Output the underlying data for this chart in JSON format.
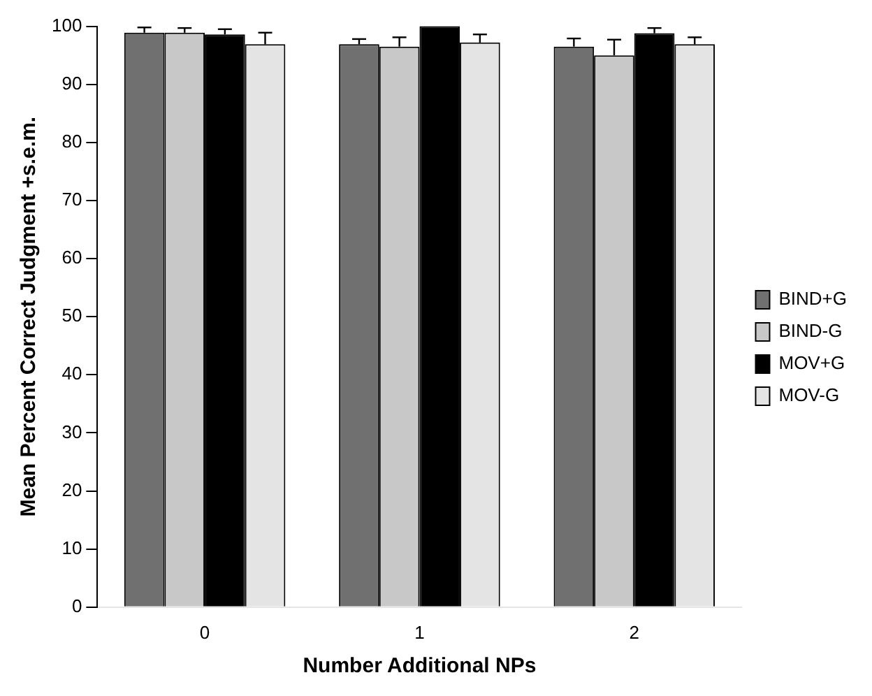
{
  "chart_data": {
    "type": "bar",
    "xlabel": "Number Additional NPs",
    "ylabel": "Mean Percent Correct Judgment +s.e.m.",
    "categories": [
      "0",
      "1",
      "2"
    ],
    "series": [
      {
        "name": "BIND+G",
        "color": "#707070",
        "values": [
          98.9,
          96.9,
          96.5
        ],
        "errors": [
          [
            98.9,
            99.8
          ],
          [
            96.9,
            97.8
          ],
          [
            96.5,
            97.9
          ]
        ]
      },
      {
        "name": "BIND-G",
        "color": "#c8c8c8",
        "values": [
          98.9,
          96.5,
          95.0
        ],
        "errors": [
          [
            98.9,
            99.7
          ],
          [
            96.5,
            98.1
          ],
          [
            95.0,
            97.7
          ]
        ]
      },
      {
        "name": "MOV+G",
        "color": "#000000",
        "values": [
          98.6,
          100,
          98.8
        ],
        "errors": [
          [
            98.6,
            99.5
          ],
          null,
          [
            98.8,
            99.7
          ]
        ]
      },
      {
        "name": "MOV-G",
        "color": "#e4e4e4",
        "values": [
          96.9,
          97.2,
          96.9
        ],
        "errors": [
          [
            96.9,
            98.9
          ],
          [
            97.2,
            98.6
          ],
          [
            96.9,
            98.1
          ]
        ]
      }
    ],
    "ylim": [
      0,
      100
    ],
    "yticks": [
      0,
      10,
      20,
      30,
      40,
      50,
      60,
      70,
      80,
      90,
      100
    ],
    "grid": false,
    "legend": "right"
  }
}
